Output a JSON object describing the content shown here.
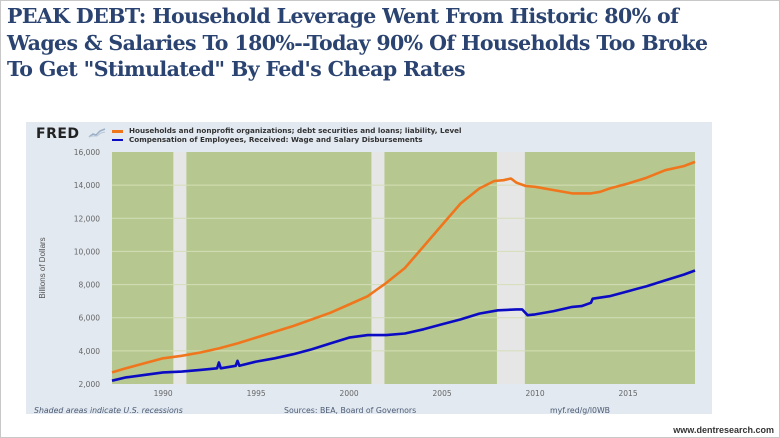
{
  "headline": {
    "lines": [
      "PEAK DEBT: Household Leverage Went From Historic 80% of",
      "Wages & Salaries To 180%--Today 90% Of Households Too Broke",
      "To Get \"Stimulated\" By Fed's Cheap Rates"
    ]
  },
  "fred": {
    "logo_text": "FRED",
    "logo_icon": "sparkline-icon"
  },
  "footer": {
    "recession_note": "Shaded areas indicate U.S. recessions",
    "sources": "Sources: BEA, Board of Governors",
    "short_url": "myf.red/g/l0WB"
  },
  "watermark": "www.dentresearch.com",
  "colors": {
    "headline": "#2a4370",
    "debt_series": "#f0761d",
    "wage_series": "#0b0bc4",
    "plot_background": "#b6c88f",
    "recession_band": "#e6e6e6",
    "panel_background": "#e2e9f1"
  },
  "chart_data": {
    "type": "line",
    "title": "",
    "xlabel": "",
    "ylabel": "Billions of Dollars",
    "xlim": [
      1987.25,
      2018.6
    ],
    "ylim": [
      2000,
      16000
    ],
    "x_ticks": [
      1990,
      1995,
      2000,
      2005,
      2010,
      2015
    ],
    "x_tick_labels": [
      "1990",
      "1995",
      "2000",
      "2005",
      "2010",
      "2015"
    ],
    "y_ticks": [
      2000,
      4000,
      6000,
      8000,
      10000,
      12000,
      14000,
      16000
    ],
    "y_tick_labels": [
      "2,000",
      "4,000",
      "6,000",
      "8,000",
      "10,000",
      "12,000",
      "14,000",
      "16,000"
    ],
    "grid": true,
    "legend_position": "top-left",
    "recessions": [
      [
        1990.55,
        1991.25
      ],
      [
        2001.2,
        2001.9
      ],
      [
        2007.95,
        2009.45
      ]
    ],
    "series": [
      {
        "name": "Households and nonprofit organizations; debt securities and loans; liability, Level",
        "color": "#f0761d",
        "x": [
          1987.25,
          1988,
          1989,
          1990,
          1991,
          1992,
          1993,
          1994,
          1995,
          1996,
          1997,
          1998,
          1999,
          2000,
          2001,
          2001.5,
          2002,
          2003,
          2004,
          2005,
          2006,
          2007,
          2007.8,
          2008.3,
          2008.7,
          2009,
          2009.5,
          2010,
          2011,
          2012,
          2013,
          2013.5,
          2014,
          2015,
          2016,
          2017,
          2018,
          2018.6
        ],
        "values": [
          2700,
          2950,
          3250,
          3550,
          3700,
          3900,
          4150,
          4450,
          4800,
          5150,
          5500,
          5900,
          6300,
          6800,
          7300,
          7700,
          8100,
          9000,
          10300,
          11600,
          12900,
          13800,
          14250,
          14300,
          14400,
          14150,
          13950,
          13900,
          13700,
          13500,
          13500,
          13600,
          13800,
          14100,
          14450,
          14900,
          15150,
          15400
        ]
      },
      {
        "name": "Compensation of Employees, Received: Wage and Salary Disbursements",
        "color": "#0b0bc4",
        "x": [
          1987.25,
          1988,
          1989,
          1990,
          1991,
          1992,
          1992.9,
          1993,
          1993.1,
          1993.9,
          1994,
          1994.1,
          1995,
          1996,
          1997,
          1998,
          1999,
          2000,
          2001,
          2002,
          2003,
          2004,
          2005,
          2006,
          2007,
          2008,
          2009,
          2009.3,
          2009.6,
          2010,
          2011,
          2012,
          2012.5,
          2013,
          2013.1,
          2014,
          2015,
          2016,
          2017,
          2018,
          2018.6
        ],
        "values": [
          2200,
          2400,
          2550,
          2700,
          2750,
          2850,
          2950,
          3300,
          2950,
          3100,
          3400,
          3100,
          3350,
          3550,
          3800,
          4100,
          4450,
          4800,
          4950,
          4950,
          5050,
          5300,
          5600,
          5900,
          6250,
          6450,
          6500,
          6500,
          6150,
          6200,
          6400,
          6650,
          6700,
          6900,
          7150,
          7300,
          7600,
          7900,
          8250,
          8600,
          8850
        ]
      }
    ]
  }
}
